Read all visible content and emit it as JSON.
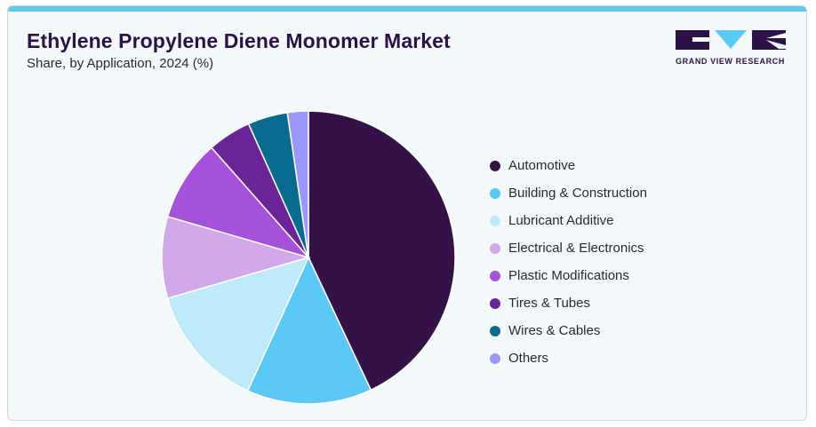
{
  "header": {
    "title": "Ethylene Propylene Diene Monomer Market",
    "subtitle": "Share, by Application, 2024 (%)"
  },
  "logo": {
    "text": "GRAND VIEW RESEARCH",
    "colors": {
      "dark": "#2e1146",
      "accent": "#5bc8f5"
    }
  },
  "chart_data": {
    "type": "pie",
    "title": "Ethylene Propylene Diene Monomer Market",
    "subtitle": "Share, by Application, 2024 (%)",
    "legend_position": "right",
    "start": "12 o'clock",
    "direction": "clockwise",
    "categories": [
      "Automotive",
      "Building & Construction",
      "Lubricant Additive",
      "Electrical & Electronics",
      "Plastic Modifications",
      "Tires & Tubes",
      "Wires & Cables",
      "Others"
    ],
    "values": [
      43.0,
      13.8,
      13.7,
      9.0,
      9.0,
      4.8,
      4.4,
      2.3
    ],
    "colors": [
      "#341146",
      "#5bc8f5",
      "#bde9f8",
      "#d3a8ea",
      "#a651d9",
      "#6a2497",
      "#096b8f",
      "#9b96fa"
    ]
  }
}
